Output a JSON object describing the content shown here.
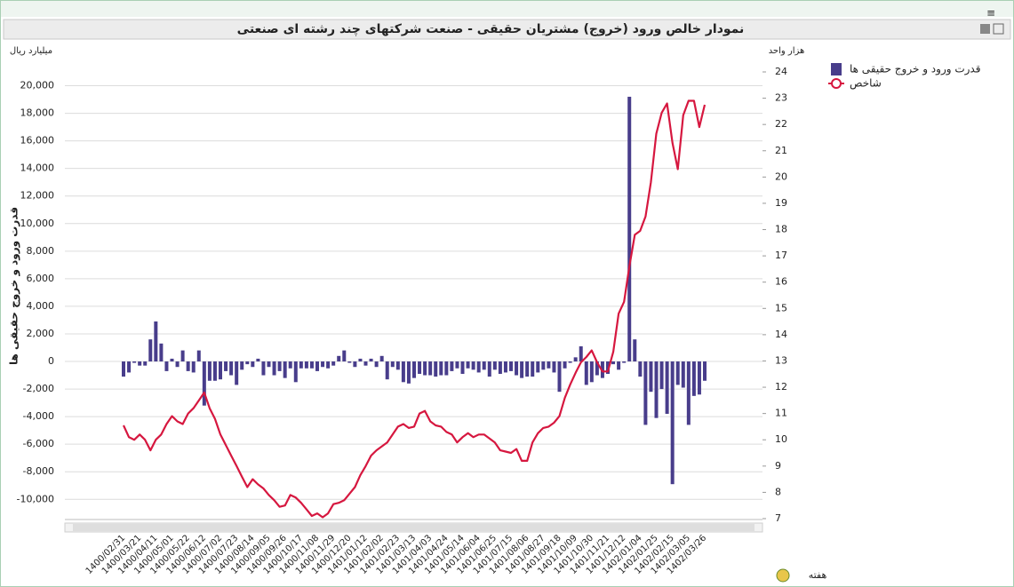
{
  "chart_data": {
    "type": "bar_line",
    "title": "نمودار خالص ورود (خروج) مشتریان حقیقی - صنعت شرکتهای چند رشته ای صنعتی",
    "y_unit": "میلیارد ریال",
    "y2_unit": "هزار واحد",
    "y_label": "قدرت ورود و خروج حقیقی ها",
    "x_label": "هفته",
    "categories": [
      "1400/02/31",
      null,
      null,
      "1400/03/21",
      null,
      null,
      "1400/04/11",
      null,
      null,
      "1400/05/01",
      null,
      null,
      "1400/05/22",
      null,
      null,
      "1400/06/12",
      null,
      null,
      "1400/07/02",
      null,
      null,
      "1400/07/23",
      null,
      null,
      "1400/08/14",
      null,
      null,
      "1400/09/05",
      null,
      null,
      "1400/09/26",
      null,
      null,
      "1400/10/17",
      null,
      null,
      "1400/11/08",
      null,
      null,
      "1400/11/29",
      null,
      null,
      "1400/12/20",
      null,
      null,
      "1401/01/12",
      null,
      null,
      "1401/02/02",
      null,
      null,
      "1401/02/23",
      null,
      null,
      "1401/03/13",
      null,
      null,
      "1401/04/03",
      null,
      null,
      "1401/04/24",
      null,
      null,
      "1401/05/14",
      null,
      null,
      "1401/06/04",
      null,
      null,
      "1401/06/25",
      null,
      null,
      "1401/07/15",
      null,
      null,
      "1401/08/06",
      null,
      null,
      "1401/08/27",
      null,
      null,
      "1401/09/18",
      null,
      null,
      "1401/10/09",
      null,
      null,
      "1401/10/30",
      null,
      null,
      "1401/11/21",
      null,
      null,
      "1401/12/12",
      null,
      null,
      "1402/01/04",
      null,
      null,
      "1402/01/25",
      null,
      null,
      "1402/02/15",
      null,
      null,
      "1402/03/05",
      null,
      null,
      "1402/03/26"
    ],
    "series": [
      {
        "name": "قدرت ورود و خروج حقیقی ها",
        "color": "#483d8b",
        "kind": "bar",
        "axis": "y",
        "values": [
          -1100,
          -800,
          -100,
          -300,
          -300,
          1600,
          2900,
          1300,
          -700,
          200,
          -400,
          800,
          -700,
          -800,
          800,
          -3200,
          -1400,
          -1400,
          -1300,
          -700,
          -1000,
          -1700,
          -600,
          -200,
          -400,
          200,
          -1000,
          -400,
          -1000,
          -700,
          -1200,
          -500,
          -1500,
          -500,
          -500,
          -500,
          -700,
          -400,
          -500,
          -300,
          400,
          800,
          -100,
          -400,
          200,
          -300,
          200,
          -400,
          400,
          -1300,
          -400,
          -600,
          -1500,
          -1600,
          -1200,
          -900,
          -1000,
          -1000,
          -1100,
          -1000,
          -1000,
          -700,
          -500,
          -900,
          -500,
          -600,
          -800,
          -600,
          -1100,
          -600,
          -900,
          -800,
          -700,
          -1000,
          -1200,
          -1100,
          -1100,
          -800,
          -600,
          -500,
          -800,
          -2200,
          -500,
          -100,
          300,
          1100,
          -1700,
          -1500,
          -1000,
          -1200,
          -900,
          -200,
          -600,
          -100,
          19200,
          1600,
          -1100,
          -4600,
          -2200,
          -4100,
          -2000,
          -3800,
          -8900,
          -1700,
          -1900,
          -4600,
          -2500,
          -2400,
          -1400
        ]
      },
      {
        "name": "شاخص",
        "color": "#d6173f",
        "kind": "line",
        "axis": "y2",
        "values": [
          10.55,
          10.1,
          10.0,
          10.2,
          10.0,
          9.6,
          10.0,
          10.2,
          10.6,
          10.9,
          10.7,
          10.6,
          11.0,
          11.2,
          11.5,
          11.8,
          11.2,
          10.8,
          10.2,
          9.8,
          9.4,
          9.0,
          8.6,
          8.2,
          8.5,
          8.3,
          8.15,
          7.9,
          7.7,
          7.45,
          7.5,
          7.9,
          7.8,
          7.6,
          7.35,
          7.1,
          7.2,
          7.05,
          7.2,
          7.55,
          7.6,
          7.7,
          7.95,
          8.2,
          8.65,
          9.0,
          9.4,
          9.6,
          9.75,
          9.9,
          10.2,
          10.5,
          10.6,
          10.45,
          10.5,
          11.0,
          11.1,
          10.7,
          10.55,
          10.5,
          10.3,
          10.2,
          9.9,
          10.1,
          10.25,
          10.1,
          10.2,
          10.2,
          10.05,
          9.9,
          9.6,
          9.55,
          9.5,
          9.65,
          9.2,
          9.2,
          9.9,
          10.25,
          10.45,
          10.5,
          10.65,
          10.9,
          11.6,
          12.1,
          12.55,
          12.95,
          13.15,
          13.4,
          12.95,
          12.6,
          12.6,
          13.35,
          14.8,
          15.25,
          16.6,
          17.8,
          17.95,
          18.5,
          19.8,
          21.65,
          22.45,
          22.8,
          21.3,
          20.3,
          22.35,
          22.9,
          22.9,
          21.9,
          22.75
        ]
      }
    ],
    "ylim": [
      -11400,
      21000
    ],
    "yticks": [
      {
        "value": -10000,
        "label": "-10,000"
      },
      {
        "value": -8000,
        "label": "-8,000"
      },
      {
        "value": -6000,
        "label": "-6,000"
      },
      {
        "value": -4000,
        "label": "-4,000"
      },
      {
        "value": -2000,
        "label": "-2,000"
      },
      0,
      {
        "value": 2000,
        "label": "2,000"
      },
      {
        "value": 4000,
        "label": "4,000"
      },
      {
        "value": 6000,
        "label": "6,000"
      },
      {
        "value": 8000,
        "label": "8,000"
      },
      {
        "value": 10000,
        "label": "10,000"
      },
      {
        "value": 12000,
        "label": "12,000"
      },
      {
        "value": 14000,
        "label": "14,000"
      },
      {
        "value": 16000,
        "label": "16,000"
      },
      {
        "value": 18000,
        "label": "18,000"
      },
      {
        "value": 20000,
        "label": "20,000"
      }
    ],
    "y2lim": [
      7,
      24
    ],
    "y2ticks": [
      7,
      8,
      9,
      10,
      11,
      12,
      13,
      14,
      15,
      16,
      17,
      18,
      19,
      20,
      21,
      22,
      23,
      24
    ],
    "grid": true,
    "legend": "right"
  }
}
